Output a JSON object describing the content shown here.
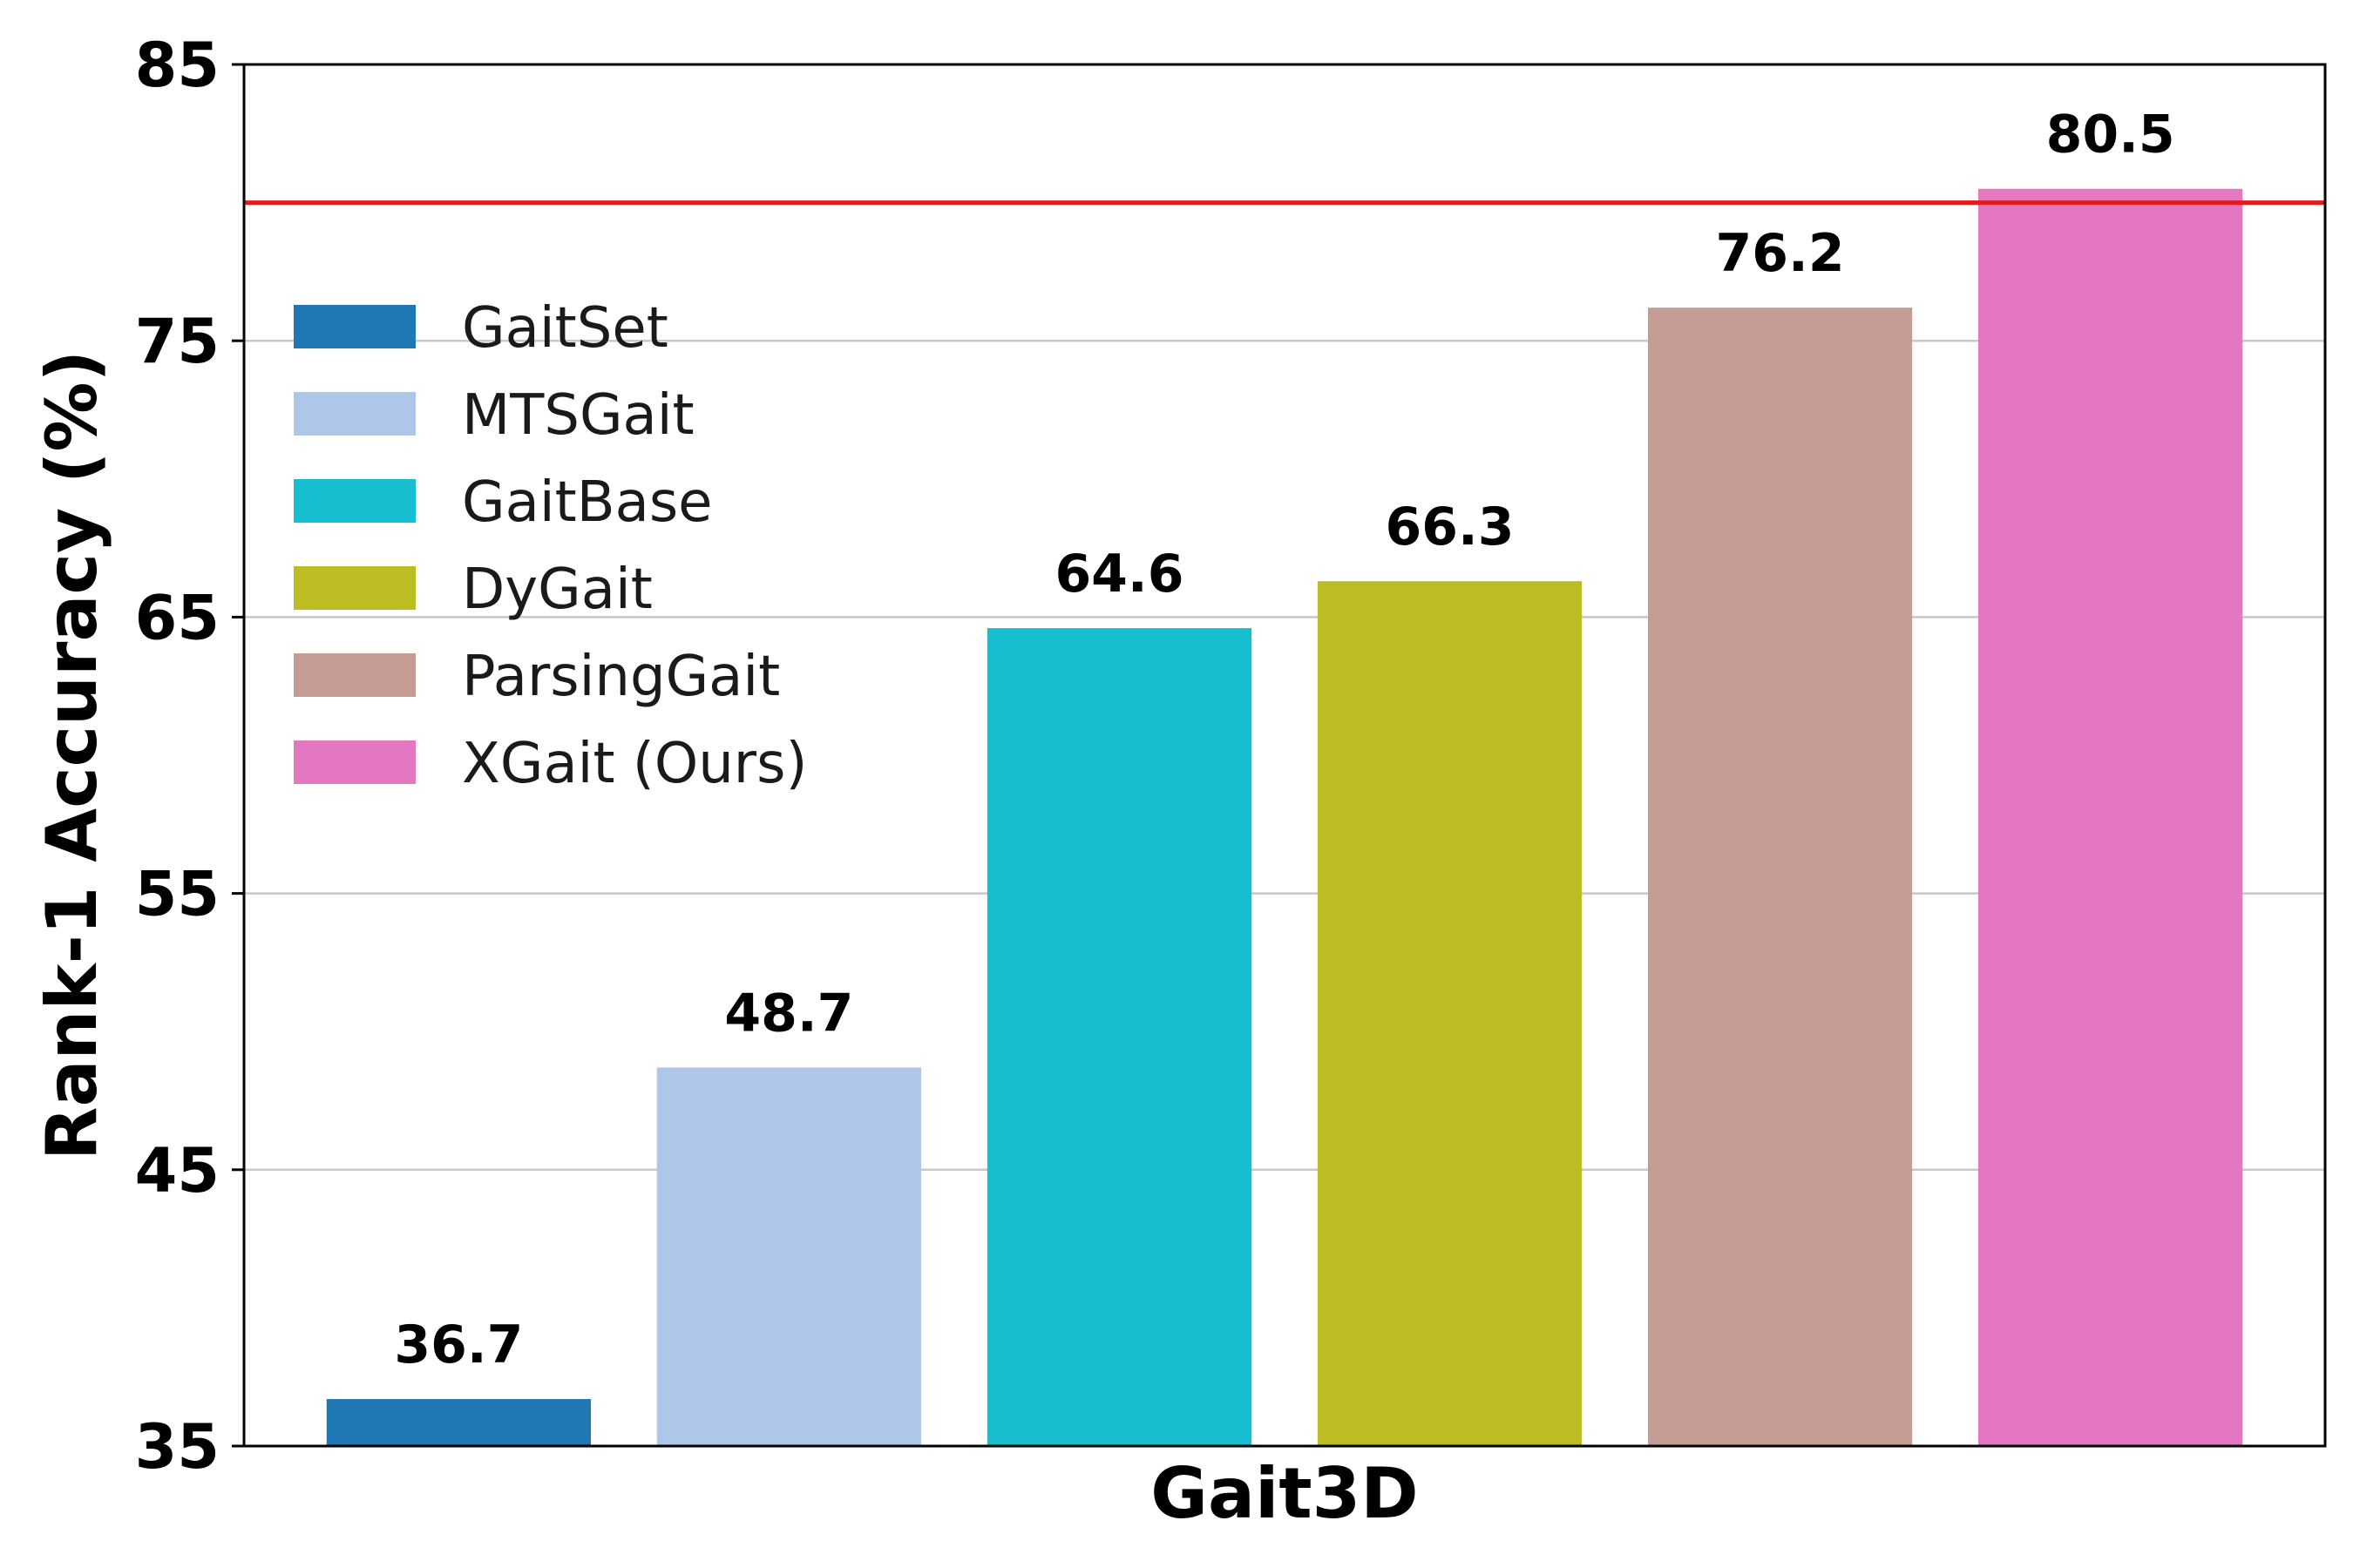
{
  "chart_data": {
    "type": "bar",
    "xlabel": "Gait3D",
    "ylabel": "Rank-1 Accuracy (%)",
    "ylim": [
      35,
      85
    ],
    "yticks": [
      35,
      45,
      55,
      65,
      75,
      85
    ],
    "grid": "horizontal",
    "legend_placement": "upper-left",
    "reference_line": {
      "value": 80,
      "color": "#e31a1c"
    },
    "categories": [
      "GaitSet",
      "MTSGait",
      "GaitBase",
      "DyGait",
      "ParsingGait",
      "XGait (Ours)"
    ],
    "values": [
      36.7,
      48.7,
      64.6,
      66.3,
      76.2,
      80.5
    ],
    "value_labels": [
      "36.7",
      "48.7",
      "64.6",
      "66.3",
      "76.2",
      "80.5"
    ],
    "colors": [
      "#1f77b4",
      "#aec7e8",
      "#17becf",
      "#bcbd22",
      "#c49c94",
      "#e377c2"
    ]
  }
}
